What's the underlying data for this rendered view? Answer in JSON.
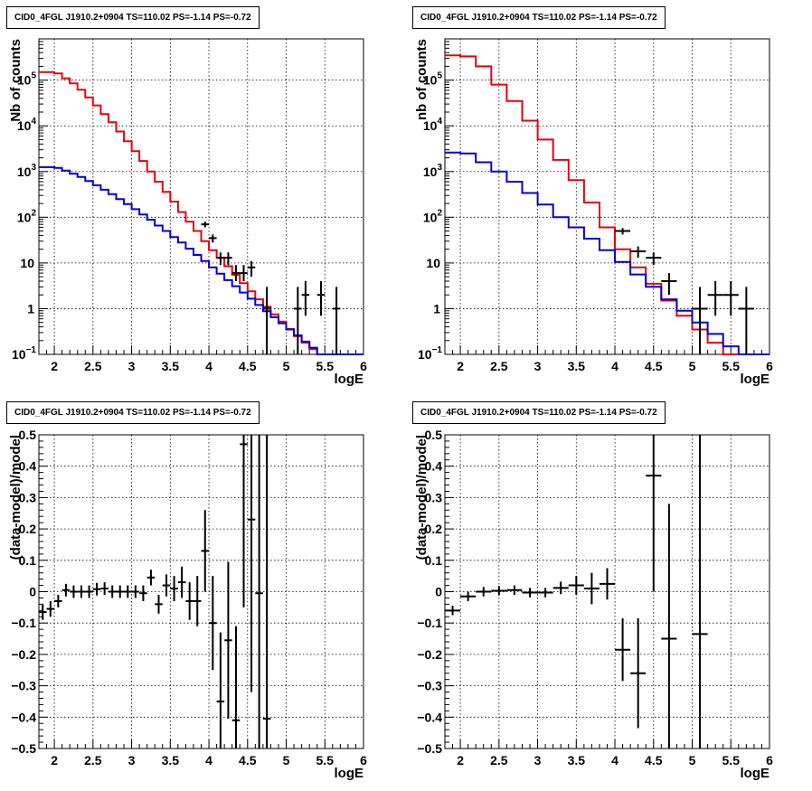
{
  "title": "CID0_4FGL J1910.2+0904 TS=110.02 PS=-1.14 PS=-0.72",
  "colors": {
    "total_model": "#e8000b",
    "source_model": "#0000dd",
    "data": "#000000",
    "grid": "#000000"
  },
  "chart_data": [
    {
      "type": "histogram",
      "title": "CID0_4FGL J1910.2+0904 TS=110.02 PS=-1.14 PS=-0.72",
      "xlabel": "logE",
      "ylabel": "Nb of counts",
      "xlim": [
        1.8,
        6
      ],
      "ylim": [
        0.1,
        800000
      ],
      "ylog": true,
      "grid": true,
      "xticks": [
        2,
        2.5,
        3,
        3.5,
        4,
        4.5,
        5,
        5.5,
        6
      ],
      "yticks": [
        {
          "v": 0.1,
          "t": "10",
          "sup": "−1"
        },
        {
          "v": 1,
          "t": "1"
        },
        {
          "v": 10,
          "t": "10"
        },
        {
          "v": 100,
          "t": "10",
          "sup": "2"
        },
        {
          "v": 1000,
          "t": "10",
          "sup": "3"
        },
        {
          "v": 10000,
          "t": "10",
          "sup": "4"
        },
        {
          "v": 100000,
          "t": "10",
          "sup": "5"
        }
      ],
      "bin_edges": [
        1.8,
        1.9,
        2.0,
        2.1,
        2.2,
        2.3,
        2.4,
        2.5,
        2.6,
        2.7,
        2.8,
        2.9,
        3.0,
        3.1,
        3.2,
        3.3,
        3.4,
        3.5,
        3.6,
        3.7,
        3.8,
        3.9,
        4.0,
        4.1,
        4.2,
        4.3,
        4.4,
        4.5,
        4.6,
        4.7,
        4.8,
        4.9,
        5.0,
        5.1,
        5.2,
        5.3,
        5.4,
        5.5,
        5.6,
        5.7,
        5.8,
        5.9,
        6.0
      ],
      "series": [
        {
          "role": "total_model",
          "values": [
            150000,
            150000,
            140000,
            110000,
            85000,
            62000,
            42000,
            28000,
            18000,
            12000,
            7500,
            4600,
            2800,
            1700,
            1000,
            600,
            360,
            220,
            130,
            80,
            50,
            30,
            19,
            13,
            8.5,
            5.5,
            3.6,
            2.4,
            1.6,
            1.1,
            0.75,
            0.52,
            0.36,
            0.25,
            0.18,
            0.13,
            0.1,
            0.1,
            0.1,
            0.1,
            0.1,
            0.1
          ]
        },
        {
          "role": "source_model",
          "values": [
            1250,
            1250,
            1200,
            1050,
            900,
            760,
            620,
            500,
            400,
            320,
            250,
            195,
            150,
            115,
            88,
            66,
            50,
            37,
            28,
            20.5,
            15,
            11,
            8,
            5.8,
            4.2,
            3.1,
            2.25,
            1.65,
            1.2,
            0.88,
            0.65,
            0.48,
            0.35,
            0.26,
            0.19,
            0.14,
            0.1,
            0.1,
            0.1,
            0.1,
            0.1,
            0.1
          ]
        }
      ],
      "data_points": [
        {
          "x": 3.95,
          "y": 70,
          "lo": 60,
          "hi": 80
        },
        {
          "x": 4.05,
          "y": 35,
          "lo": 28,
          "hi": 42
        },
        {
          "x": 4.15,
          "y": 13,
          "lo": 9,
          "hi": 17
        },
        {
          "x": 4.25,
          "y": 13,
          "lo": 9,
          "hi": 17
        },
        {
          "x": 4.35,
          "y": 6,
          "lo": 4,
          "hi": 9
        },
        {
          "x": 4.45,
          "y": 6,
          "lo": 4,
          "hi": 9
        },
        {
          "x": 4.55,
          "y": 8,
          "lo": 5,
          "hi": 11
        },
        {
          "x": 4.75,
          "y": 1,
          "lo": 0.1,
          "hi": 3
        },
        {
          "x": 5.15,
          "y": 1,
          "lo": 0.1,
          "hi": 3
        },
        {
          "x": 5.25,
          "y": 2,
          "lo": 0.7,
          "hi": 4
        },
        {
          "x": 5.45,
          "y": 2,
          "lo": 0.7,
          "hi": 4
        },
        {
          "x": 5.65,
          "y": 1,
          "lo": 0.1,
          "hi": 3
        }
      ]
    },
    {
      "type": "histogram",
      "title": "CID0_4FGL J1910.2+0904 TS=110.02 PS=-1.14 PS=-0.72",
      "xlabel": "logE",
      "ylabel": "nb of counts",
      "xlim": [
        1.8,
        6
      ],
      "ylim": [
        0.1,
        800000
      ],
      "ylog": true,
      "grid": true,
      "xticks": [
        2,
        2.5,
        3,
        3.5,
        4,
        4.5,
        5,
        5.5,
        6
      ],
      "yticks": [
        {
          "v": 0.1,
          "t": "10",
          "sup": "−1"
        },
        {
          "v": 1,
          "t": "1"
        },
        {
          "v": 10,
          "t": "10"
        },
        {
          "v": 100,
          "t": "10",
          "sup": "2"
        },
        {
          "v": 1000,
          "t": "10",
          "sup": "3"
        },
        {
          "v": 10000,
          "t": "10",
          "sup": "4"
        },
        {
          "v": 100000,
          "t": "10",
          "sup": "5"
        }
      ],
      "bin_edges": [
        1.8,
        2.0,
        2.2,
        2.4,
        2.6,
        2.8,
        3.0,
        3.2,
        3.4,
        3.6,
        3.8,
        4.0,
        4.2,
        4.4,
        4.6,
        4.8,
        5.0,
        5.2,
        5.4,
        5.6,
        5.8,
        6.0
      ],
      "series": [
        {
          "role": "total_model",
          "values": [
            350000,
            330000,
            200000,
            80000,
            35000,
            13000,
            5000,
            1800,
            650,
            210,
            60,
            20,
            8,
            3.5,
            1.5,
            0.7,
            0.35,
            0.18,
            0.1,
            0.1,
            0.1
          ]
        },
        {
          "role": "source_model",
          "values": [
            2600,
            2500,
            1600,
            1000,
            600,
            340,
            190,
            100,
            60,
            34,
            19,
            10.5,
            5.6,
            3,
            1.6,
            0.9,
            0.5,
            0.28,
            0.15,
            0.1,
            0.1
          ]
        }
      ],
      "data_points": [
        {
          "x": 4.1,
          "y": 50,
          "lo": 42,
          "hi": 58
        },
        {
          "x": 4.3,
          "y": 18,
          "lo": 13,
          "hi": 23
        },
        {
          "x": 4.5,
          "y": 13,
          "lo": 9,
          "hi": 17
        },
        {
          "x": 4.7,
          "y": 4,
          "lo": 2,
          "hi": 6
        },
        {
          "x": 5.1,
          "y": 1,
          "lo": 0.1,
          "hi": 3
        },
        {
          "x": 5.3,
          "y": 2,
          "lo": 0.7,
          "hi": 4
        },
        {
          "x": 5.5,
          "y": 2,
          "lo": 0.7,
          "hi": 4
        },
        {
          "x": 5.7,
          "y": 1,
          "lo": 0.1,
          "hi": 3
        }
      ]
    },
    {
      "type": "scatter",
      "title": "CID0_4FGL J1910.2+0904 TS=110.02 PS=-1.14 PS=-0.72",
      "xlabel": "logE",
      "ylabel": "(data-model)/model",
      "xlim": [
        1.8,
        6
      ],
      "ylim": [
        -0.5,
        0.5
      ],
      "grid": true,
      "xticks": [
        2,
        2.5,
        3,
        3.5,
        4,
        4.5,
        5,
        5.5,
        6
      ],
      "yticks": [
        -0.5,
        -0.4,
        -0.3,
        -0.2,
        -0.1,
        0,
        0.1,
        0.2,
        0.3,
        0.4,
        0.5
      ],
      "xerr": 0.05,
      "points": [
        {
          "x": 1.85,
          "y": -0.065,
          "e": 0.025
        },
        {
          "x": 1.95,
          "y": -0.055,
          "e": 0.025
        },
        {
          "x": 2.05,
          "y": -0.03,
          "e": 0.02
        },
        {
          "x": 2.15,
          "y": 0.005,
          "e": 0.02
        },
        {
          "x": 2.25,
          "y": 0.0,
          "e": 0.02
        },
        {
          "x": 2.35,
          "y": 0.0,
          "e": 0.02
        },
        {
          "x": 2.45,
          "y": 0.0,
          "e": 0.02
        },
        {
          "x": 2.55,
          "y": 0.008,
          "e": 0.02
        },
        {
          "x": 2.65,
          "y": 0.01,
          "e": 0.02
        },
        {
          "x": 2.75,
          "y": 0.0,
          "e": 0.02
        },
        {
          "x": 2.85,
          "y": 0.0,
          "e": 0.02
        },
        {
          "x": 2.95,
          "y": 0.0,
          "e": 0.02
        },
        {
          "x": 3.05,
          "y": 0.0,
          "e": 0.02
        },
        {
          "x": 3.15,
          "y": -0.005,
          "e": 0.025
        },
        {
          "x": 3.25,
          "y": 0.045,
          "e": 0.025
        },
        {
          "x": 3.35,
          "y": -0.04,
          "e": 0.03
        },
        {
          "x": 3.45,
          "y": 0.02,
          "e": 0.035
        },
        {
          "x": 3.55,
          "y": 0.01,
          "e": 0.04
        },
        {
          "x": 3.65,
          "y": 0.03,
          "e": 0.05
        },
        {
          "x": 3.75,
          "y": -0.03,
          "e": 0.06
        },
        {
          "x": 3.85,
          "y": -0.03,
          "e": 0.08
        },
        {
          "x": 3.95,
          "y": 0.13,
          "e": 0.13
        },
        {
          "x": 4.05,
          "y": -0.1,
          "e": 0.15
        },
        {
          "x": 4.15,
          "y": -0.35,
          "e": 0.22
        },
        {
          "x": 4.25,
          "y": -0.155,
          "e": 0.25
        },
        {
          "x": 4.35,
          "y": -0.41,
          "e": 0.3
        },
        {
          "x": 4.45,
          "y": 0.47,
          "e": 0.52
        },
        {
          "x": 4.55,
          "y": 0.23,
          "e": 0.55
        },
        {
          "x": 4.65,
          "y": -0.005,
          "e": 0.8
        },
        {
          "x": 4.75,
          "y": -0.405,
          "e": 1.0
        }
      ]
    },
    {
      "type": "scatter",
      "title": "CID0_4FGL J1910.2+0904 TS=110.02 PS=-1.14 PS=-0.72",
      "xlabel": "logE",
      "ylabel": "(data-model)/model",
      "xlim": [
        1.8,
        6
      ],
      "ylim": [
        -0.5,
        0.5
      ],
      "grid": true,
      "xticks": [
        2,
        2.5,
        3,
        3.5,
        4,
        4.5,
        5,
        5.5,
        6
      ],
      "yticks": [
        -0.5,
        -0.4,
        -0.3,
        -0.2,
        -0.1,
        0,
        0.1,
        0.2,
        0.3,
        0.4,
        0.5
      ],
      "xerr": 0.1,
      "points": [
        {
          "x": 1.9,
          "y": -0.06,
          "e": 0.015
        },
        {
          "x": 2.1,
          "y": -0.015,
          "e": 0.015
        },
        {
          "x": 2.3,
          "y": 0.0,
          "e": 0.015
        },
        {
          "x": 2.5,
          "y": 0.003,
          "e": 0.015
        },
        {
          "x": 2.7,
          "y": 0.005,
          "e": 0.015
        },
        {
          "x": 2.9,
          "y": -0.003,
          "e": 0.015
        },
        {
          "x": 3.1,
          "y": -0.003,
          "e": 0.015
        },
        {
          "x": 3.3,
          "y": 0.012,
          "e": 0.02
        },
        {
          "x": 3.5,
          "y": 0.02,
          "e": 0.03
        },
        {
          "x": 3.7,
          "y": 0.01,
          "e": 0.05
        },
        {
          "x": 3.9,
          "y": 0.025,
          "e": 0.05
        },
        {
          "x": 4.1,
          "y": -0.185,
          "e": 0.1
        },
        {
          "x": 4.3,
          "y": -0.26,
          "e": 0.175
        },
        {
          "x": 4.5,
          "y": 0.37,
          "e": 0.37
        },
        {
          "x": 4.7,
          "y": -0.15,
          "e": 0.43
        },
        {
          "x": 5.1,
          "y": -0.135,
          "e": 1.0
        }
      ]
    }
  ]
}
